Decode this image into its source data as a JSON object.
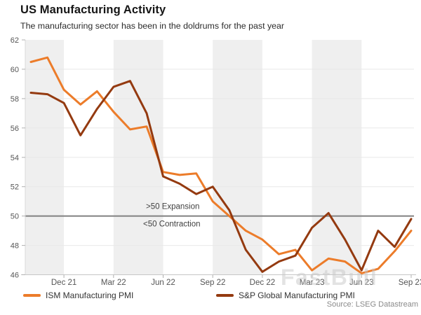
{
  "chart": {
    "source": "Source: LSEG Datastream",
    "watermark": "FastBull"
  },
  "colors": {
    "band": "#efefef",
    "gridline": "#e8e8e8",
    "reference_line": "#808080",
    "axis_line": "#c6c6c6",
    "tick": "#b0b0b0",
    "axis_label": "#555555",
    "annotation": "#404040",
    "ism_orange": "#ec7c2a",
    "sp_brown": "#943a10"
  },
  "chart_data": {
    "type": "line",
    "title": "US Manufacturing Activity",
    "subtitle": "The manufacturing sector has been in the doldrums for the past year",
    "x": [
      "Oct 21",
      "Nov 21",
      "Dec 21",
      "Jan 22",
      "Feb 22",
      "Mar 22",
      "Apr 22",
      "May 22",
      "Jun 22",
      "Jul 22",
      "Aug 22",
      "Sep 22",
      "Oct 22",
      "Nov 22",
      "Dec 22",
      "Jan 23",
      "Feb 23",
      "Mar 23",
      "Apr 23",
      "May 23",
      "Jun 23",
      "Jul 23",
      "Aug 23",
      "Sep 23"
    ],
    "x_tick_indices": [
      2,
      5,
      8,
      11,
      14,
      17,
      20,
      23
    ],
    "x_tick_labels": [
      "Dec 21",
      "Mar 22",
      "Jun 22",
      "Sep 22",
      "Dec 22",
      "Mar 23",
      "Jun 23",
      "Sep 23"
    ],
    "ylim": [
      46,
      62
    ],
    "y_ticks": [
      46,
      48,
      50,
      52,
      54,
      56,
      58,
      60,
      62
    ],
    "grid": "horizontal-faint",
    "background_bands": "alternating-quarter-gray",
    "reference_line": 50,
    "annotations": {
      "above_line": ">50 Expansion",
      "below_line": "<50 Contraction"
    },
    "legend_position": "bottom",
    "series": [
      {
        "name": "ISM Manufacturing PMI",
        "color": "#ec7c2a",
        "values": [
          60.5,
          60.8,
          58.6,
          57.6,
          58.5,
          57.1,
          55.9,
          56.1,
          53.0,
          52.8,
          52.9,
          51.0,
          50.0,
          49.0,
          48.4,
          47.4,
          47.7,
          46.3,
          47.1,
          46.9,
          46.1,
          46.4,
          47.6,
          49.0
        ]
      },
      {
        "name": "S&P Global Manufacturing PMI",
        "color": "#943a10",
        "values": [
          58.4,
          58.3,
          57.7,
          55.5,
          57.3,
          58.8,
          59.2,
          57.0,
          52.7,
          52.2,
          51.5,
          52.0,
          50.4,
          47.7,
          46.2,
          46.9,
          47.3,
          49.2,
          50.2,
          48.4,
          46.3,
          49.0,
          47.9,
          49.8
        ]
      }
    ]
  }
}
